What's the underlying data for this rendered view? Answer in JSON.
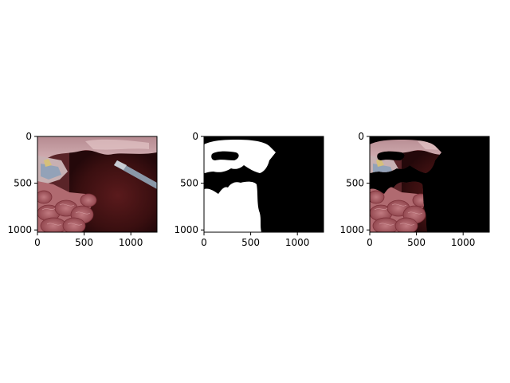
{
  "figure": {
    "background": "#ffffff",
    "axis_color": "#000000"
  },
  "chart_data": [
    {
      "type": "image",
      "panel": "original-endoscopic-frame",
      "content": "laparoscopic surgical photo: liver tissue top, instrument upper-left and upper-right, dark cavity center-right, bowel loops bottom-left",
      "xlim": [
        0,
        1280
      ],
      "ylim": [
        1024,
        0
      ],
      "x_ticks": [
        0,
        500,
        1000
      ],
      "y_ticks": [
        0,
        500,
        1000
      ],
      "colors": {
        "tissue": "#a8606a",
        "cavity": "#4a1414",
        "liver": "#c9a4a8",
        "instrument": "#8aa0b8"
      }
    },
    {
      "type": "image",
      "panel": "binary-mask",
      "content": "white segmentation mask on black background (left portion of frame)",
      "xlim": [
        0,
        1280
      ],
      "ylim": [
        1024,
        0
      ],
      "x_ticks": [
        0,
        500,
        1000
      ],
      "y_ticks": [
        0,
        500,
        1000
      ],
      "colors": {
        "foreground": "#ffffff",
        "background": "#000000"
      }
    },
    {
      "type": "image",
      "panel": "masked-overlay",
      "content": "original frame multiplied by mask: tissue visible only inside mask, rest black",
      "xlim": [
        0,
        1280
      ],
      "ylim": [
        1024,
        0
      ],
      "x_ticks": [
        0,
        500,
        1000
      ],
      "y_ticks": [
        0,
        500,
        1000
      ],
      "colors": {
        "background": "#000000"
      }
    }
  ]
}
